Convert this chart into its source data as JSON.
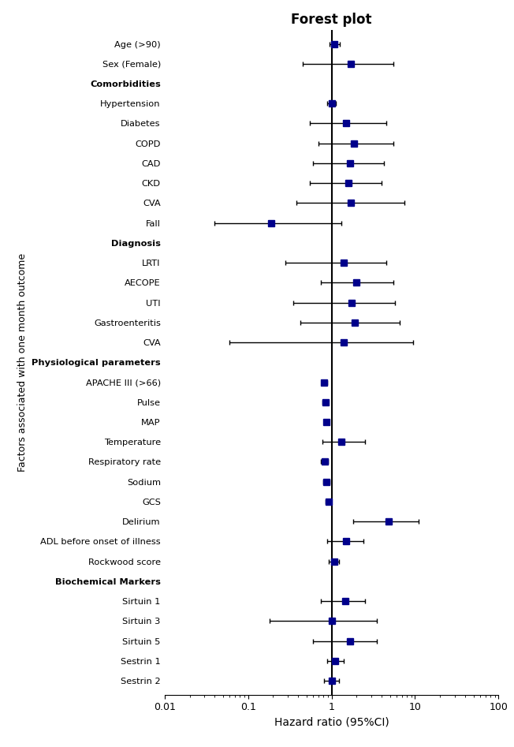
{
  "title": "Forest plot",
  "xlabel": "Hazard ratio (95%CI)",
  "ylabel": "Factors associated with one month outcome",
  "ref_line": 1.0,
  "marker_color": "#00008B",
  "marker_size": 6,
  "rows": [
    {
      "label": "Age (>90)",
      "hr": 1.08,
      "ci_lo": 0.95,
      "ci_hi": 1.25,
      "bold": false,
      "header": false
    },
    {
      "label": "Sex (Female)",
      "hr": 1.7,
      "ci_lo": 0.45,
      "ci_hi": 5.5,
      "bold": false,
      "header": false
    },
    {
      "label": "Comorbidities",
      "hr": null,
      "ci_lo": null,
      "ci_hi": null,
      "bold": true,
      "header": true
    },
    {
      "label": "Hypertension",
      "hr": 1.0,
      "ci_lo": 0.88,
      "ci_hi": 1.12,
      "bold": false,
      "header": false
    },
    {
      "label": "Diabetes",
      "hr": 1.5,
      "ci_lo": 0.55,
      "ci_hi": 4.5,
      "bold": false,
      "header": false
    },
    {
      "label": "COPD",
      "hr": 1.85,
      "ci_lo": 0.7,
      "ci_hi": 5.5,
      "bold": false,
      "header": false
    },
    {
      "label": "CAD",
      "hr": 1.65,
      "ci_lo": 0.6,
      "ci_hi": 4.2,
      "bold": false,
      "header": false
    },
    {
      "label": "CKD",
      "hr": 1.6,
      "ci_lo": 0.55,
      "ci_hi": 4.0,
      "bold": false,
      "header": false
    },
    {
      "label": "CVA",
      "hr": 1.7,
      "ci_lo": 0.38,
      "ci_hi": 7.5,
      "bold": false,
      "header": false
    },
    {
      "label": "Fall",
      "hr": 0.19,
      "ci_lo": 0.04,
      "ci_hi": 1.3,
      "bold": false,
      "header": false
    },
    {
      "label": "Diagnosis",
      "hr": null,
      "ci_lo": null,
      "ci_hi": null,
      "bold": true,
      "header": true
    },
    {
      "label": "LRTI",
      "hr": 1.4,
      "ci_lo": 0.28,
      "ci_hi": 4.5,
      "bold": false,
      "header": false
    },
    {
      "label": "AECOPE",
      "hr": 2.0,
      "ci_lo": 0.75,
      "ci_hi": 5.5,
      "bold": false,
      "header": false
    },
    {
      "label": "UTI",
      "hr": 1.75,
      "ci_lo": 0.35,
      "ci_hi": 5.8,
      "bold": false,
      "header": false
    },
    {
      "label": "Gastroenteritis",
      "hr": 1.9,
      "ci_lo": 0.42,
      "ci_hi": 6.5,
      "bold": false,
      "header": false
    },
    {
      "label": "CVA",
      "hr": 1.4,
      "ci_lo": 0.06,
      "ci_hi": 9.5,
      "bold": false,
      "header": false
    },
    {
      "label": "Physiological parameters",
      "hr": null,
      "ci_lo": null,
      "ci_hi": null,
      "bold": true,
      "header": true
    },
    {
      "label": "APACHE III (>66)",
      "hr": 0.82,
      "ci_lo": 0.76,
      "ci_hi": 0.88,
      "bold": false,
      "header": false
    },
    {
      "label": "Pulse",
      "hr": 0.84,
      "ci_lo": 0.78,
      "ci_hi": 0.91,
      "bold": false,
      "header": false
    },
    {
      "label": "MAP",
      "hr": 0.87,
      "ci_lo": 0.81,
      "ci_hi": 0.93,
      "bold": false,
      "header": false
    },
    {
      "label": "Temperature",
      "hr": 1.3,
      "ci_lo": 0.78,
      "ci_hi": 2.5,
      "bold": false,
      "header": false
    },
    {
      "label": "Respiratory rate",
      "hr": 0.83,
      "ci_lo": 0.75,
      "ci_hi": 0.91,
      "bold": false,
      "header": false
    },
    {
      "label": "Sodium",
      "hr": 0.86,
      "ci_lo": 0.79,
      "ci_hi": 0.94,
      "bold": false,
      "header": false
    },
    {
      "label": "GCS",
      "hr": 0.92,
      "ci_lo": 0.85,
      "ci_hi": 0.99,
      "bold": false,
      "header": false
    },
    {
      "label": "Delirium",
      "hr": 4.8,
      "ci_lo": 1.8,
      "ci_hi": 11.0,
      "bold": false,
      "header": false
    },
    {
      "label": "ADL before onset of illness",
      "hr": 1.5,
      "ci_lo": 0.88,
      "ci_hi": 2.4,
      "bold": false,
      "header": false
    },
    {
      "label": "Rockwood score",
      "hr": 1.08,
      "ci_lo": 0.92,
      "ci_hi": 1.22,
      "bold": false,
      "header": false
    },
    {
      "label": "Biochemical Markers",
      "hr": null,
      "ci_lo": null,
      "ci_hi": null,
      "bold": true,
      "header": true
    },
    {
      "label": "Sirtuin 1",
      "hr": 1.45,
      "ci_lo": 0.75,
      "ci_hi": 2.5,
      "bold": false,
      "header": false
    },
    {
      "label": "Sirtuin 3",
      "hr": 1.0,
      "ci_lo": 0.18,
      "ci_hi": 3.5,
      "bold": false,
      "header": false
    },
    {
      "label": "Sirtuin 5",
      "hr": 1.65,
      "ci_lo": 0.6,
      "ci_hi": 3.5,
      "bold": false,
      "header": false
    },
    {
      "label": "Sestrin 1",
      "hr": 1.1,
      "ci_lo": 0.88,
      "ci_hi": 1.4,
      "bold": false,
      "header": false
    },
    {
      "label": "Sestrin 2",
      "hr": 1.02,
      "ci_lo": 0.82,
      "ci_hi": 1.22,
      "bold": false,
      "header": false
    }
  ]
}
